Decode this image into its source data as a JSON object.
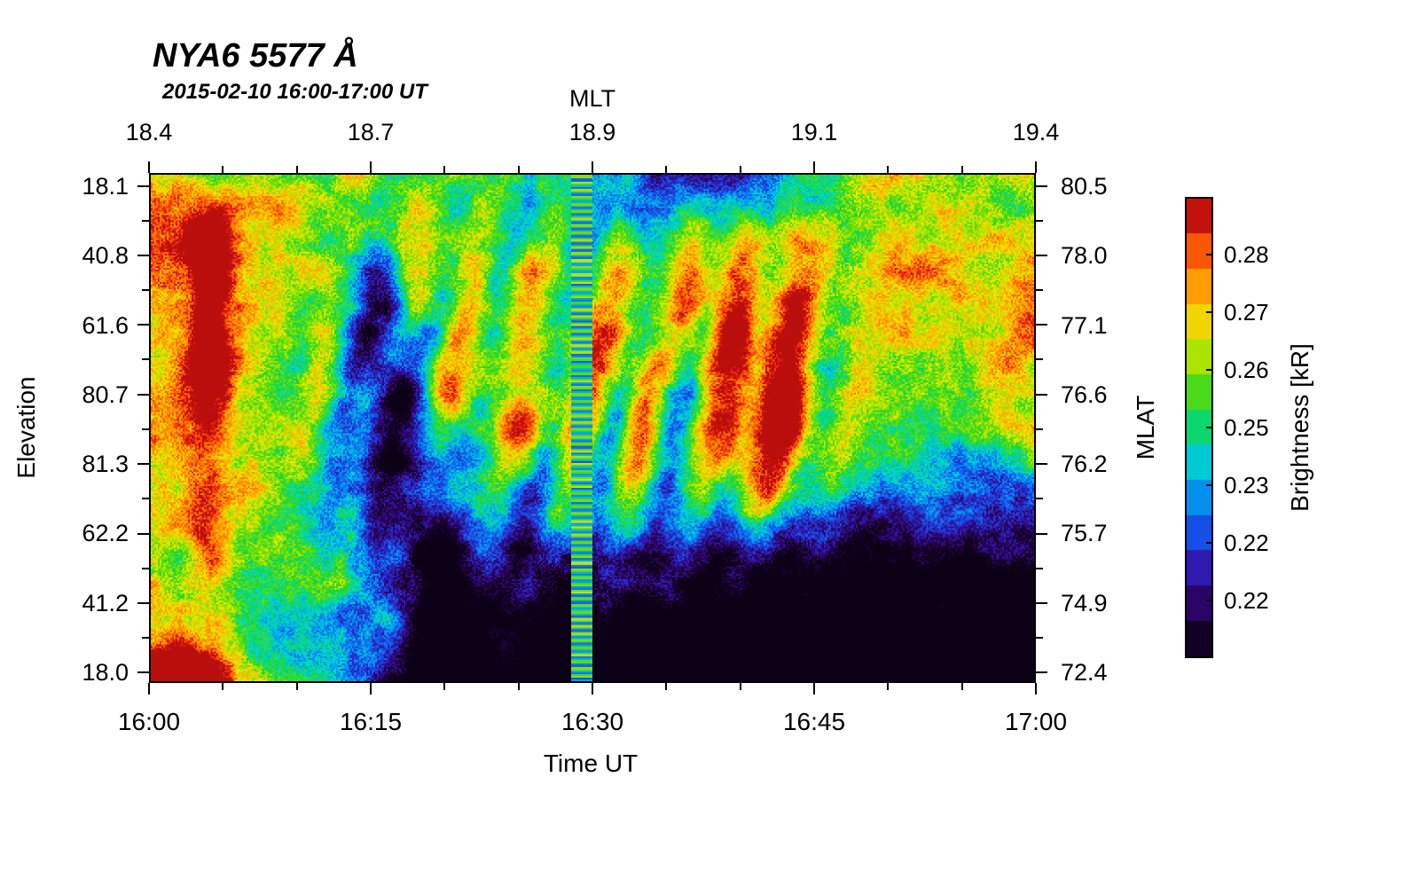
{
  "title": "NYA6 5577 Å",
  "subtitle": "2015-02-10 16:00-17:00 UT",
  "axes": {
    "top": {
      "label": "MLT",
      "ticks": [
        "18.4",
        "18.7",
        "18.9",
        "19.1",
        "19.4"
      ]
    },
    "bottom": {
      "label": "Time UT",
      "ticks": [
        "16:00",
        "16:15",
        "16:30",
        "16:45",
        "17:00"
      ]
    },
    "left": {
      "label": "Elevation",
      "ticks": [
        "18.1",
        "40.8",
        "61.6",
        "80.7",
        "81.3",
        "62.2",
        "41.2",
        "18.0"
      ]
    },
    "right": {
      "label": "MLAT",
      "ticks": [
        "80.5",
        "78.0",
        "77.1",
        "76.6",
        "76.2",
        "75.7",
        "74.9",
        "72.4"
      ]
    }
  },
  "colorbar": {
    "label": "Brightness [kR]",
    "ticks": [
      "0.28",
      "0.27",
      "0.26",
      "0.25",
      "0.23",
      "0.22",
      "0.22"
    ],
    "stops": [
      {
        "p": 0.0,
        "c": "#050007"
      },
      {
        "p": 0.1,
        "c": "#2a0055"
      },
      {
        "p": 0.19,
        "c": "#2f18b0"
      },
      {
        "p": 0.28,
        "c": "#1456ee"
      },
      {
        "p": 0.37,
        "c": "#00a6ee"
      },
      {
        "p": 0.45,
        "c": "#00dcc8"
      },
      {
        "p": 0.53,
        "c": "#15d535"
      },
      {
        "p": 0.62,
        "c": "#7ce000"
      },
      {
        "p": 0.7,
        "c": "#e8ea00"
      },
      {
        "p": 0.78,
        "c": "#ffb400"
      },
      {
        "p": 0.86,
        "c": "#ff7000"
      },
      {
        "p": 0.93,
        "c": "#ee2010"
      },
      {
        "p": 1.0,
        "c": "#8e0008"
      }
    ]
  },
  "chart_data": {
    "type": "heatmap",
    "title": "NYA6 5577 Å",
    "subtitle": "2015-02-10 16:00-17:00 UT",
    "xlabel": "Time UT",
    "x_ticks": [
      "16:00",
      "16:15",
      "16:30",
      "16:45",
      "17:00"
    ],
    "x2label": "MLT",
    "x2_ticks": [
      18.4,
      18.7,
      18.9,
      19.1,
      19.4
    ],
    "ylabel": "Elevation",
    "y_ticks": [
      18.1,
      40.8,
      61.6,
      80.7,
      81.3,
      62.2,
      41.2,
      18.0
    ],
    "y2label": "MLAT",
    "y2_ticks": [
      80.5,
      78.0,
      77.1,
      76.6,
      76.2,
      75.7,
      74.9,
      72.4
    ],
    "zlabel": "Brightness [kR]",
    "z_ticks_kR": [
      0.28,
      0.27,
      0.26,
      0.25,
      0.23,
      0.22,
      0.22
    ],
    "zrange_kR": [
      0.2,
      0.29
    ],
    "grid_time_cols": [
      "16:00",
      "16:05",
      "16:10",
      "16:15",
      "16:20",
      "16:25",
      "16:30",
      "16:35",
      "16:40",
      "16:45",
      "16:50",
      "16:55",
      "17:00"
    ],
    "grid_note": "approximate brightness in kR; rows run from top of keogram (elevation 18.1) to bottom (elevation 18.0)",
    "values": [
      [
        0.27,
        0.26,
        0.26,
        0.25,
        0.25,
        0.24,
        0.23,
        0.22,
        0.22,
        0.24,
        0.26,
        0.26,
        0.25
      ],
      [
        0.28,
        0.27,
        0.26,
        0.25,
        0.26,
        0.25,
        0.24,
        0.25,
        0.26,
        0.26,
        0.26,
        0.27,
        0.26
      ],
      [
        0.27,
        0.28,
        0.26,
        0.24,
        0.26,
        0.26,
        0.25,
        0.27,
        0.28,
        0.26,
        0.27,
        0.27,
        0.27
      ],
      [
        0.27,
        0.28,
        0.25,
        0.23,
        0.26,
        0.26,
        0.26,
        0.27,
        0.28,
        0.26,
        0.26,
        0.26,
        0.27
      ],
      [
        0.27,
        0.26,
        0.26,
        0.22,
        0.25,
        0.26,
        0.25,
        0.26,
        0.27,
        0.26,
        0.25,
        0.24,
        0.26
      ],
      [
        0.26,
        0.26,
        0.25,
        0.22,
        0.24,
        0.24,
        0.25,
        0.25,
        0.25,
        0.24,
        0.23,
        0.22,
        0.23
      ],
      [
        0.26,
        0.25,
        0.25,
        0.23,
        0.22,
        0.22,
        0.23,
        0.23,
        0.22,
        0.21,
        0.21,
        0.21,
        0.21
      ],
      [
        0.27,
        0.25,
        0.24,
        0.23,
        0.21,
        0.21,
        0.21,
        0.2,
        0.2,
        0.2,
        0.2,
        0.2,
        0.2
      ],
      [
        0.28,
        0.27,
        0.24,
        0.22,
        0.2,
        0.2,
        0.2,
        0.2,
        0.2,
        0.2,
        0.2,
        0.2,
        0.2
      ]
    ],
    "render_features": {
      "red_column_u": 0.065,
      "artifact_column_u": 0.487,
      "red_blob_u": 0.7,
      "red_blob_v": 0.47,
      "blue_streak_u0": 0.235
    }
  }
}
